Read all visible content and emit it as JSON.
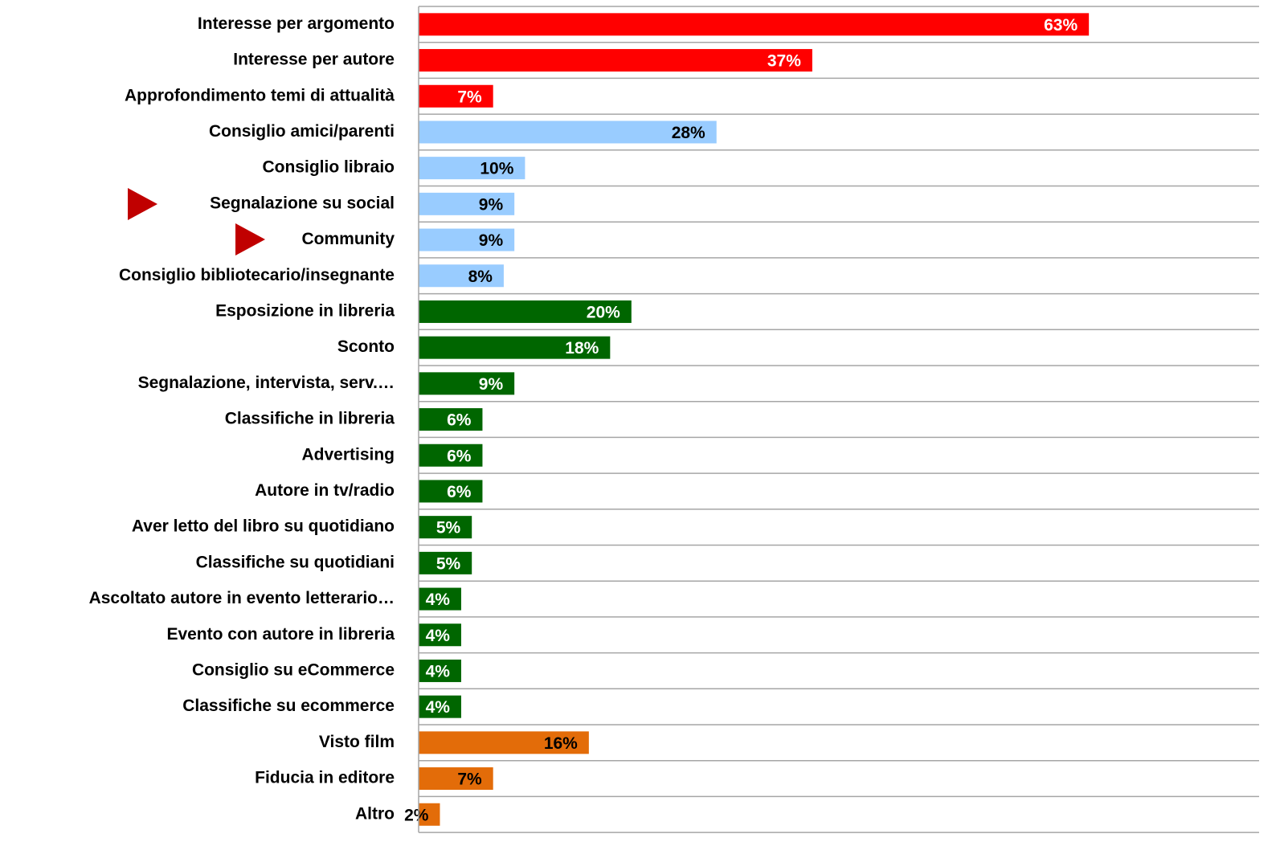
{
  "chart_data": {
    "type": "barh",
    "categories": [
      "Interesse per argomento",
      "Interesse per autore",
      "Approfondimento temi di attualità",
      "Consiglio amici/parenti",
      "Consiglio libraio",
      "Segnalazione su social",
      "Community",
      "Consiglio bibliotecario/insegnante",
      "Esposizione in libreria",
      "Sconto",
      "Segnalazione, intervista, serv.…",
      "Classifiche in libreria",
      "Advertising",
      "Autore in tv/radio",
      "Aver letto del libro su quotidiano",
      "Classifiche su quotidiani",
      "Ascoltato autore in evento letterario…",
      "Evento con autore in libreria",
      "Consiglio su eCommerce",
      "Classifiche su ecommerce",
      "Visto film",
      "Fiducia in editore",
      "Altro"
    ],
    "values": [
      63,
      37,
      7,
      28,
      10,
      9,
      9,
      8,
      20,
      18,
      9,
      6,
      6,
      6,
      5,
      5,
      4,
      4,
      4,
      4,
      16,
      7,
      2
    ],
    "value_labels": [
      "63%",
      "37%",
      "7%",
      "28%",
      "10%",
      "9%",
      "9%",
      "8%",
      "20%",
      "18%",
      "9%",
      "6%",
      "6%",
      "6%",
      "5%",
      "5%",
      "4%",
      "4%",
      "4%",
      "4%",
      "16%",
      "7%",
      "2%"
    ],
    "colors": [
      "#ff0000",
      "#ff0000",
      "#ff0000",
      "#99ccff",
      "#99ccff",
      "#99ccff",
      "#99ccff",
      "#99ccff",
      "#006600",
      "#006600",
      "#006600",
      "#006600",
      "#006600",
      "#006600",
      "#006600",
      "#006600",
      "#006600",
      "#006600",
      "#006600",
      "#006600",
      "#e36c09",
      "#e36c09",
      "#e36c09"
    ],
    "label_colors": [
      "#ffffff",
      "#ffffff",
      "#ffffff",
      "#000000",
      "#000000",
      "#000000",
      "#000000",
      "#000000",
      "#ffffff",
      "#ffffff",
      "#ffffff",
      "#ffffff",
      "#ffffff",
      "#ffffff",
      "#ffffff",
      "#ffffff",
      "#ffffff",
      "#ffffff",
      "#ffffff",
      "#ffffff",
      "#000000",
      "#000000",
      "#000000"
    ],
    "xlim": [
      0,
      79
    ]
  }
}
